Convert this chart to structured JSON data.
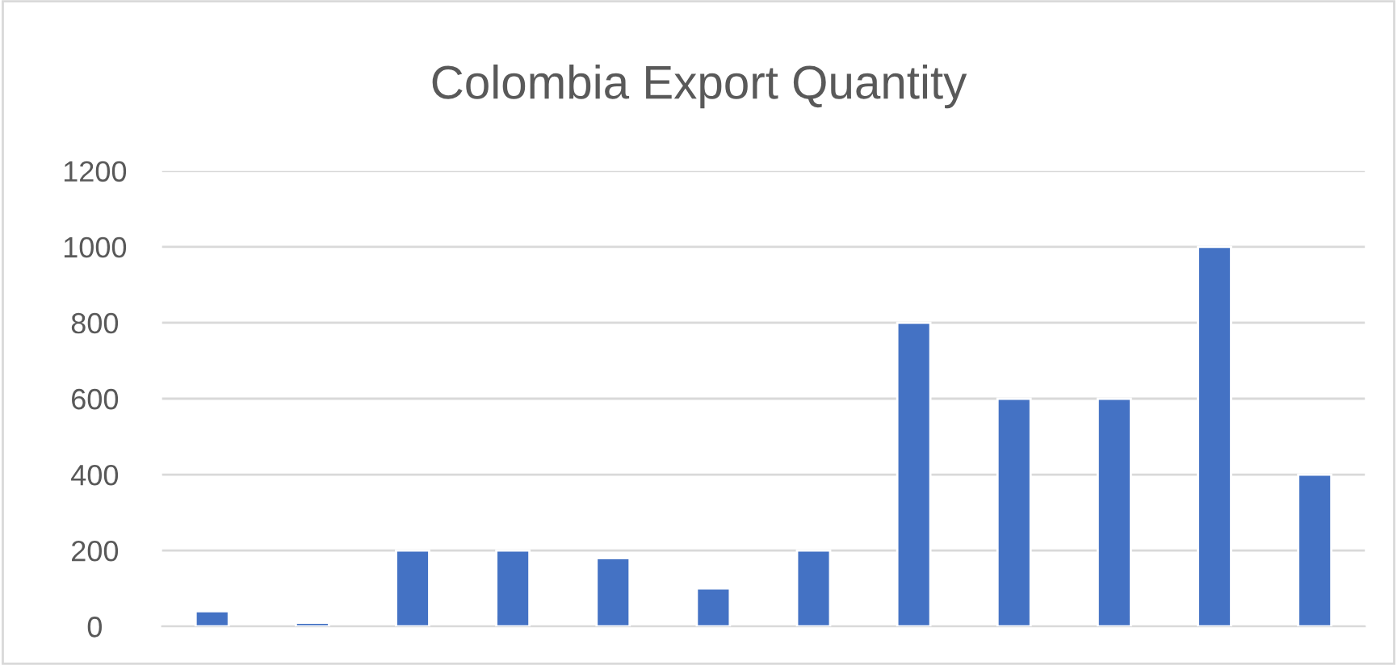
{
  "chart_data": {
    "type": "bar",
    "title": "Colombia Export Quantity",
    "categories": [
      null,
      null,
      null,
      null,
      null,
      null,
      null,
      null,
      null,
      null,
      null,
      null
    ],
    "series": [
      {
        "color": "#4472c4",
        "values": [
          40,
          10,
          200,
          200,
          180,
          100,
          200,
          800,
          600,
          600,
          1000,
          400
        ]
      }
    ],
    "ylim": [
      0,
      1200
    ],
    "yticks": [
      0,
      200,
      400,
      600,
      800,
      1000,
      1200
    ],
    "grid": "y",
    "tick_labels": "y"
  }
}
